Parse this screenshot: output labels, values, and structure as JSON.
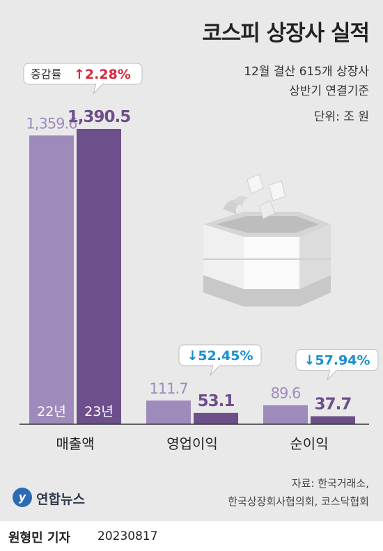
{
  "title": "코스피 상장사 실적",
  "subtitle_lines": [
    "12월 결산 615개 상장사",
    "상반기 연결기준"
  ],
  "unit_label": "단위: 조 원",
  "source_lines": [
    "자료: 한국거래소,",
    "한국상장회사협의회, 코스닥협회"
  ],
  "logo_text": "연합뉴스",
  "logo_mark": "y",
  "byline": "원형민 기자",
  "date": "20230817",
  "colors": {
    "y22": "#9e8bbb",
    "y23": "#6d4f8c",
    "up": "#d8283c",
    "down": "#1a8fd0",
    "panel": "#e9e9e9"
  },
  "icon": "money-burning-stove-icon",
  "chart_data": {
    "type": "bar",
    "categories": [
      "매출액",
      "영업이익",
      "순이익"
    ],
    "series": [
      {
        "name": "22년",
        "values": [
          1359.6,
          111.7,
          89.6
        ],
        "labels": [
          "1,359.6",
          "111.7",
          "89.6"
        ]
      },
      {
        "name": "23년",
        "values": [
          1390.5,
          53.1,
          37.7
        ],
        "labels": [
          "1,390.5",
          "53.1",
          "37.7"
        ]
      }
    ],
    "changes": [
      {
        "prefix": "증감률",
        "arrow": "↑",
        "value": "2.28%",
        "direction": "up"
      },
      {
        "prefix": "",
        "arrow": "↓",
        "value": "52.45%",
        "direction": "down"
      },
      {
        "prefix": "",
        "arrow": "↓",
        "value": "57.94%",
        "direction": "down"
      }
    ],
    "ylim": [
      0,
      1390.5
    ],
    "grid": false,
    "legend": "inside-bars"
  }
}
